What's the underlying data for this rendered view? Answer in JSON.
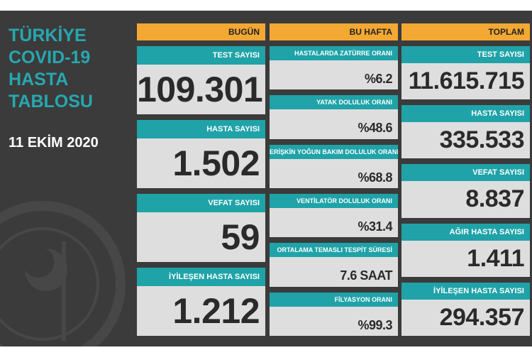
{
  "sidebar": {
    "title_lines": [
      "TÜRKİYE",
      "COVID-19",
      "HASTA",
      "TABLOSU"
    ],
    "date": "11 EKİM 2020"
  },
  "columns": [
    {
      "header": "BUGÜN",
      "items": [
        {
          "label": "TEST SAYISI",
          "value": "109.301"
        },
        {
          "label": "HASTA SAYISI",
          "value": "1.502"
        },
        {
          "label": "VEFAT SAYISI",
          "value": "59"
        },
        {
          "label": "İYİLEŞEN HASTA SAYISI",
          "value": "1.212"
        }
      ]
    },
    {
      "header": "BU HAFTA",
      "items": [
        {
          "label": "HASTALARDA ZATÜRRE ORANI",
          "value": "%6.2"
        },
        {
          "label": "YATAK DOLULUK ORANI",
          "value": "%48.6"
        },
        {
          "label": "ERİŞKİN YOĞUN BAKIM DOLULUK ORANI",
          "value": "%68.8"
        },
        {
          "label": "VENTİLATÖR DOLULUK ORANI",
          "value": "%31.4"
        },
        {
          "label": "ORTALAMA TEMASLI TESPİT SÜRESİ",
          "value": "7.6 SAAT"
        },
        {
          "label": "FİLYASYON ORANI",
          "value": "%99.3"
        }
      ]
    },
    {
      "header": "TOPLAM",
      "items": [
        {
          "label": "TEST SAYISI",
          "value": "11.615.715"
        },
        {
          "label": "HASTA SAYISI",
          "value": "335.533"
        },
        {
          "label": "VEFAT SAYISI",
          "value": "8.837"
        },
        {
          "label": "AĞIR HASTA SAYISI",
          "value": "1.411"
        },
        {
          "label": "İYİLEŞEN HASTA SAYISI",
          "value": "294.357"
        }
      ]
    }
  ]
}
